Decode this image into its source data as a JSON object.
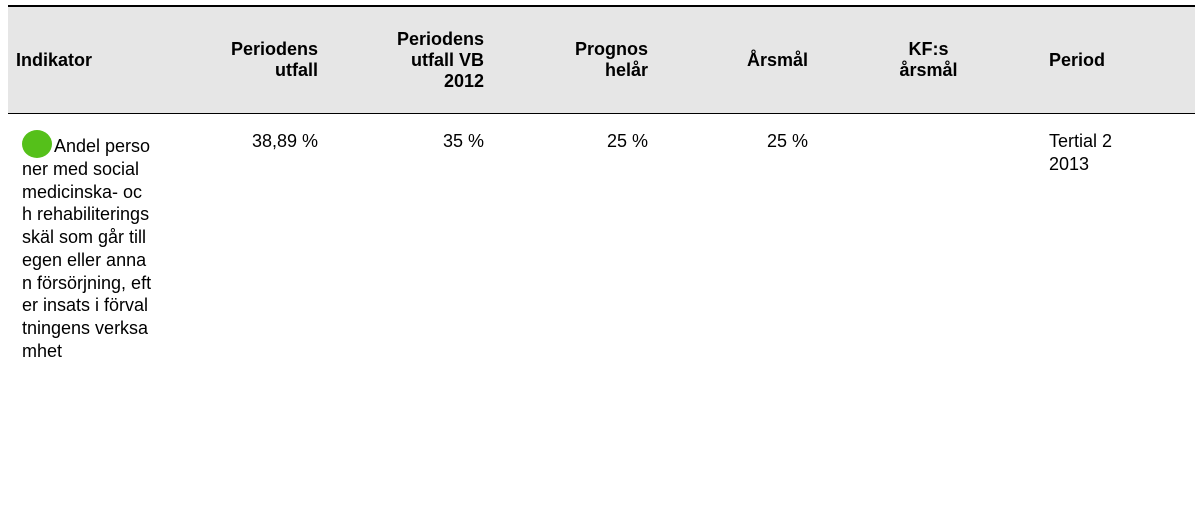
{
  "table": {
    "headers": [
      "Indikator",
      "Periodens utfall",
      "Periodens utfall VB 2012",
      "Prognos helår",
      "Årsmål",
      "KF:s årsmål",
      "Period"
    ],
    "rows": [
      [
        "Andel personer med socialmedicinska- och rehabiliteringsskäl som går till egen eller annan försörjning, efter insats i förvaltningens verksamhet",
        "38,89 %",
        "35 %",
        "25 %",
        "25 %",
        "",
        "Tertial 2 2013"
      ]
    ]
  }
}
